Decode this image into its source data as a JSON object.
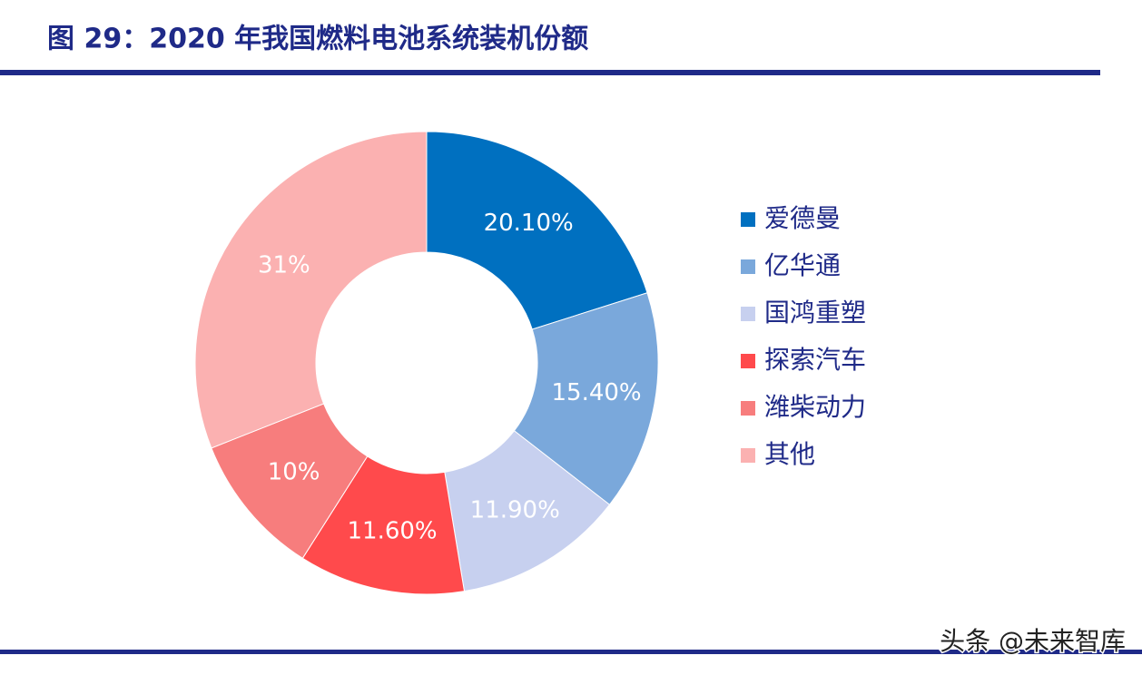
{
  "chart_data": {
    "type": "donut",
    "title": "图 29：2020 年我国燃料电池系统装机份额",
    "categories": [
      "爱德曼",
      "亿华通",
      "国鸿重塑",
      "探索汽车",
      "潍柴动力",
      "其他"
    ],
    "values": [
      20.1,
      15.4,
      11.9,
      11.6,
      10,
      31
    ],
    "value_labels": [
      "20.10%",
      "15.40%",
      "11.90%",
      "11.60%",
      "10%",
      "31%"
    ],
    "colors": [
      "#0070c0",
      "#7aa8db",
      "#c7d0ef",
      "#ff4a4c",
      "#f77d7d",
      "#fbb1b1"
    ],
    "legend": "right"
  },
  "watermark": "头条 @未来智库"
}
